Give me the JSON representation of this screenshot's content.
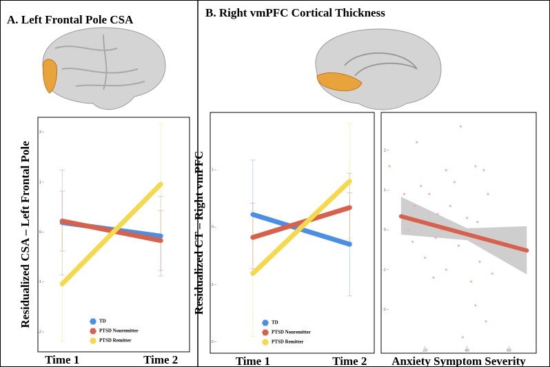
{
  "panels": [
    {
      "title": "A. Left Frontal Pole CSA"
    },
    {
      "title": "B. Right vmPFC Cortical Thickness"
    }
  ],
  "chart_data": [
    {
      "type": "line",
      "categories": [
        "Time 1",
        "Time 2"
      ],
      "ylabel": "Residualized CSA – Left Frontal Pole",
      "ylim": [
        -2.4,
        2.3
      ],
      "yticks": [
        -2,
        -1,
        0,
        1,
        2
      ],
      "legend": "lower left",
      "series": [
        {
          "name": "TD",
          "color": "#4a8fe7",
          "values": [
            0.19,
            -0.08
          ],
          "errors": [
            1.05,
            0.8
          ]
        },
        {
          "name": "PTSD Nonremitter",
          "color": "#d9604a",
          "values": [
            0.22,
            -0.17
          ],
          "errors": [
            0.6,
            0.6
          ]
        },
        {
          "name": "PTSD Remitter",
          "color": "#f6d94a",
          "values": [
            -1.04,
            0.96
          ],
          "errors": [
            1.15,
            1.2
          ]
        }
      ]
    },
    {
      "type": "line",
      "categories": [
        "Time 1",
        "Time 2"
      ],
      "ylabel": "Residualized CT – Right vmPFC",
      "ylim": [
        -2.2,
        2.0
      ],
      "yticks": [
        -2,
        -1,
        0,
        1
      ],
      "legend": "lower left",
      "series": [
        {
          "name": "TD",
          "color": "#4a8fe7",
          "values": [
            0.22,
            -0.3
          ],
          "errors": [
            0.95,
            0.9
          ]
        },
        {
          "name": "PTSD Nonremitter",
          "color": "#d9604a",
          "values": [
            -0.18,
            0.34
          ],
          "errors": [
            0.6,
            0.6
          ]
        },
        {
          "name": "PTSD Remitter",
          "color": "#f6d94a",
          "values": [
            -0.81,
            0.8
          ],
          "errors": [
            1.1,
            1.0
          ]
        }
      ]
    },
    {
      "type": "scatter",
      "xlabel": "Anxiety Symptom Severity",
      "xlim": [
        -1,
        73
      ],
      "xticks": [
        20,
        40,
        60
      ],
      "ylim": [
        -3.1,
        2.95
      ],
      "yticks": [
        -2,
        -1,
        0,
        1,
        2
      ],
      "point_color": "#f2a7a0",
      "x": [
        3,
        10,
        12,
        14,
        15,
        16,
        18,
        20,
        22,
        24,
        26,
        28,
        30,
        32,
        34,
        36,
        37,
        38,
        40,
        42,
        44,
        45,
        46,
        48,
        49,
        50,
        52,
        44,
        30,
        25
      ],
      "y": [
        1.6,
        0.9,
        0.0,
        -0.3,
        0.6,
        2.2,
        1.1,
        -0.7,
        0.9,
        -1.2,
        0.4,
        0.0,
        -1.0,
        0.6,
        1.2,
        -0.4,
        2.6,
        -2.7,
        0.3,
        -1.3,
        1.6,
        0.2,
        -0.8,
        1.5,
        -2.3,
        0.9,
        -1.1,
        -1.9,
        1.5,
        -0.2
      ],
      "fit": {
        "color": "#d9604a",
        "x": [
          8.5,
          68.5
        ],
        "y": [
          0.34,
          -0.52
        ]
      },
      "band": {
        "color": "#bdbdbd",
        "x": [
          8.5,
          40,
          68.5
        ],
        "upper": [
          0.83,
          0.04,
          0.09
        ],
        "lower": [
          -0.12,
          -0.26,
          -1.12
        ]
      }
    }
  ]
}
